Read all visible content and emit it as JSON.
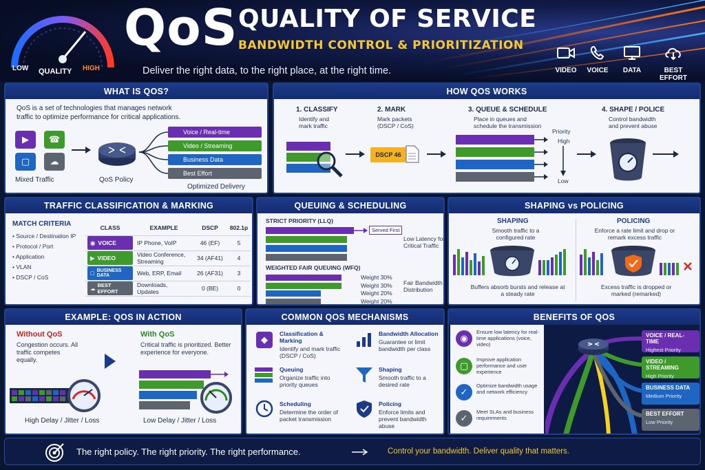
{
  "header": {
    "logo": "QoS",
    "title": "QUALITY OF SERVICE",
    "subtitle": "BANDWIDTH CONTROL & PRIORITIZATION",
    "tagline": "Deliver the right data, to the right place, at the right time.",
    "gauge": {
      "low": "LOW",
      "label": "QUALITY",
      "high": "HIGH"
    },
    "icons": [
      {
        "label": "VIDEO",
        "icon": "video-camera-icon"
      },
      {
        "label": "VOICE",
        "icon": "phone-icon"
      },
      {
        "label": "DATA",
        "icon": "monitor-icon"
      },
      {
        "label": "BEST EFFORT",
        "icon": "cloud-download-icon"
      }
    ]
  },
  "what": {
    "title": "WHAT IS QOS?",
    "description": "QoS is a set of technologies that manages network traffic to optimize performance for critical applications.",
    "mixed_label": "Mixed Traffic",
    "policy_label": "QoS Policy",
    "delivery_label": "Optimized Delivery",
    "queues": [
      "Voice / Real-time",
      "Video / Streaming",
      "Business Data",
      "Best Effort"
    ]
  },
  "how": {
    "title": "HOW QOS WORKS",
    "steps": [
      {
        "title": "1. CLASSIFY",
        "desc": "Identify and mark traffic"
      },
      {
        "title": "2. MARK",
        "desc": "Mark packets (DSCP / CoS)"
      },
      {
        "title": "3. QUEUE & SCHEDULE",
        "desc": "Place in queues and schedule the transmission"
      },
      {
        "title": "4. SHAPE / POLICE",
        "desc": "Control bandwidth and prevent abuse"
      }
    ],
    "dscp_tag": "DSCP 46",
    "priority_label": "Priority",
    "high": "High",
    "low": "Low"
  },
  "classification": {
    "title": "TRAFFIC CLASSIFICATION & MARKING",
    "criteria_title": "MATCH CRITERIA",
    "criteria": [
      "Source / Destination IP",
      "Protocol / Port",
      "Application",
      "VLAN",
      "DSCP / CoS"
    ],
    "columns": [
      "CLASS",
      "EXAMPLE",
      "DSCP",
      "802.1p"
    ],
    "rows": [
      {
        "class": "VOICE",
        "example": "IP Phone, VoIP",
        "dscp": "46 (EF)",
        "p": "5",
        "color": "#6a2fb0"
      },
      {
        "class": "VIDEO",
        "example": "Video Conference, Streaming",
        "dscp": "34 (AF41)",
        "p": "4",
        "color": "#3e9a2a"
      },
      {
        "class": "BUSINESS DATA",
        "example": "Web, ERP, Email",
        "dscp": "26 (AF31)",
        "p": "3",
        "color": "#1f66c2"
      },
      {
        "class": "BEST EFFORT",
        "example": "Downloads, Updates",
        "dscp": "0 (BE)",
        "p": "0",
        "color": "#5c6470"
      }
    ]
  },
  "queuing": {
    "title": "QUEUING & SCHEDULING",
    "strict_title": "STRICT PRIORITY (LLQ)",
    "served_first": "Served First",
    "strict_desc": "Low Latency for Critical Traffic",
    "wfq_title": "WEIGHTED FAIR QUEUING (WFQ)",
    "weights": [
      "Weight 30%",
      "Weight 30%",
      "Weight 20%",
      "Weight 20%"
    ],
    "weight_values": [
      30,
      30,
      20,
      20
    ],
    "wfq_desc": "Fair Bandwidth Distribution"
  },
  "shaping": {
    "title": "SHAPING vs POLICING",
    "shaping_title": "SHAPING",
    "shaping_desc": "Smooth traffic to a configured rate",
    "shaping_note": "Buffers absorb bursts and release at a steady rate",
    "policing_title": "POLICING",
    "policing_desc": "Enforce a rate limit and drop or remark excess traffic",
    "policing_note": "Excess traffic is dropped or marked (remarked)"
  },
  "example": {
    "title": "EXAMPLE: QOS IN ACTION",
    "without_title": "Without QoS",
    "without_desc": "Congestion occurs. All traffic competes equally.",
    "without_result": "High Delay / Jitter / Loss",
    "with_title": "With QoS",
    "with_desc": "Critical traffic is prioritized. Better experience for everyone.",
    "with_result": "Low Delay / Jitter / Loss"
  },
  "mechanisms": {
    "title": "COMMON QOS MECHANISMS",
    "items": [
      {
        "title": "Classification & Marking",
        "desc": "Identify and mark traffic (DSCP / CoS)",
        "icon": "tag-icon"
      },
      {
        "title": "Bandwidth Allocation",
        "desc": "Guarantee or limit bandwidth per class",
        "icon": "bar-chart-icon"
      },
      {
        "title": "Queuing",
        "desc": "Organize traffic into priority queues",
        "icon": "queue-icon"
      },
      {
        "title": "Shaping",
        "desc": "Smooth traffic to a desired rate",
        "icon": "funnel-icon"
      },
      {
        "title": "Scheduling",
        "desc": "Determine the order of packet transmission",
        "icon": "clock-icon"
      },
      {
        "title": "Policing",
        "desc": "Enforce limits and prevent bandwidth abuse",
        "icon": "shield-icon"
      }
    ]
  },
  "benefits": {
    "title": "BENEFITS OF QOS",
    "items": [
      {
        "text": "Ensure low latency for real-time applications (voice, video)",
        "icon": "headset-icon",
        "color": "#6a2fb0"
      },
      {
        "text": "Improve application performance and user experience",
        "icon": "monitor-icon",
        "color": "#3e9a2a"
      },
      {
        "text": "Optimize bandwidth usage and network efficiency",
        "icon": "shield-check-icon",
        "color": "#1f66c2"
      },
      {
        "text": "Meet SLAs and business requirements",
        "icon": "shield-check-icon",
        "color": "#5c6470"
      }
    ],
    "cables": [
      {
        "title": "VOICE / REAL-TIME",
        "priority": "Highest Priority",
        "color": "#6a2fb0"
      },
      {
        "title": "VIDEO / STREAMING",
        "priority": "High Priority",
        "color": "#3e9a2a"
      },
      {
        "title": "BUSINESS DATA",
        "priority": "Medium Priority",
        "color": "#1f66c2"
      },
      {
        "title": "BEST EFFORT",
        "priority": "Low Priority",
        "color": "#5c6470"
      }
    ]
  },
  "footer": {
    "left": "The right policy. The right priority. The right performance.",
    "right": "Control your bandwidth. Deliver quality that matters."
  }
}
